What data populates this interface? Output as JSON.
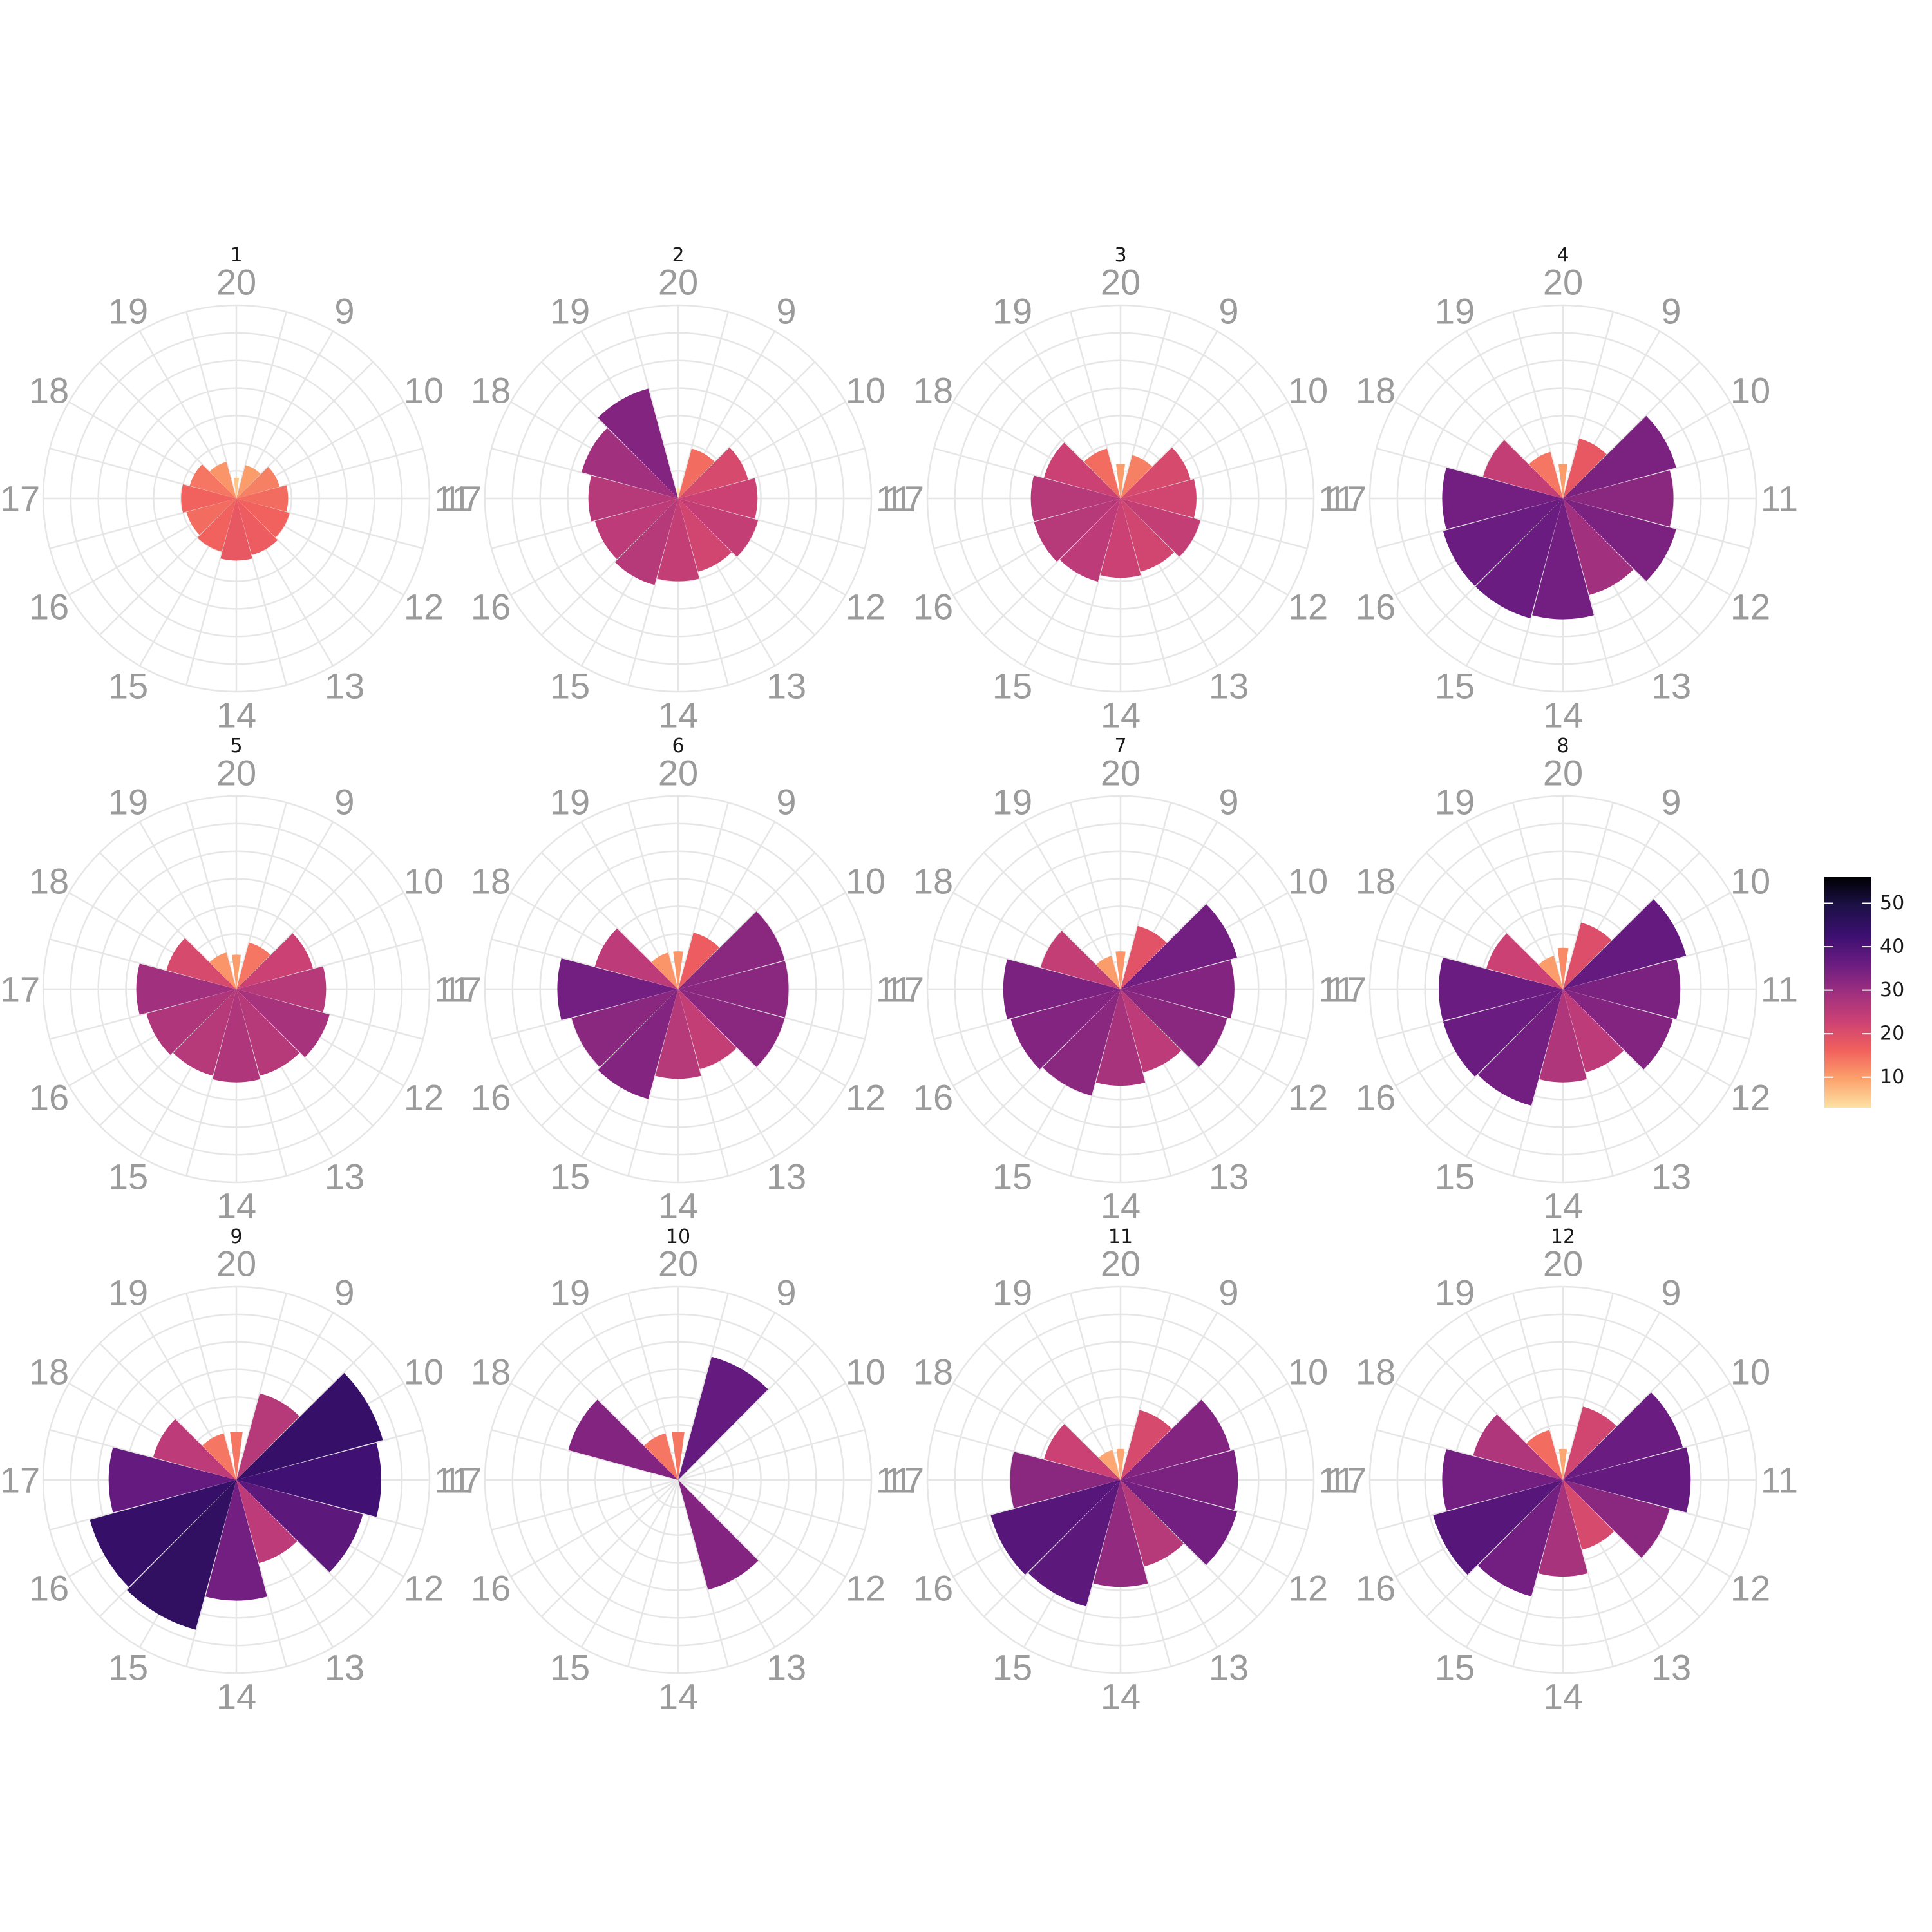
{
  "chart_data": {
    "type": "polar-bar",
    "hours": [
      9,
      10,
      11,
      12,
      13,
      14,
      15,
      16,
      17,
      18,
      19,
      20
    ],
    "rmax": 56,
    "grid_rings": [
      8,
      16,
      24,
      32,
      40,
      48,
      56
    ],
    "color_scale": {
      "min": 3,
      "max": 56,
      "ticks": [
        10,
        20,
        30,
        40,
        50
      ],
      "stops": [
        "#fde2a3",
        "#fca16c",
        "#f1605d",
        "#cc4174",
        "#9e2f7f",
        "#6a1c81",
        "#3b0f70",
        "#1d1147",
        "#000004"
      ]
    },
    "panels": [
      {
        "title": "1",
        "values": [
          10,
          13,
          15,
          16,
          17,
          18,
          16,
          15,
          16,
          14,
          11,
          6
        ]
      },
      {
        "title": "2",
        "values": [
          15,
          21,
          23,
          24,
          22,
          24,
          26,
          25,
          26,
          29,
          33,
          3
        ]
      },
      {
        "title": "3",
        "values": [
          13,
          21,
          22,
          24,
          22,
          23,
          25,
          26,
          26,
          23,
          15,
          10
        ]
      },
      {
        "title": "4",
        "values": [
          18,
          34,
          32,
          34,
          29,
          35,
          36,
          36,
          35,
          24,
          14,
          10
        ]
      },
      {
        "title": "5",
        "values": [
          14,
          23,
          26,
          28,
          26,
          27,
          26,
          27,
          29,
          21,
          11,
          10
        ]
      },
      {
        "title": "6",
        "values": [
          17,
          32,
          32,
          32,
          24,
          26,
          33,
          32,
          35,
          25,
          11,
          11
        ]
      },
      {
        "title": "7",
        "values": [
          19,
          35,
          33,
          32,
          25,
          28,
          32,
          33,
          34,
          24,
          10,
          11
        ]
      },
      {
        "title": "8",
        "values": [
          20,
          37,
          34,
          33,
          25,
          27,
          35,
          36,
          36,
          23,
          10,
          12
        ]
      },
      {
        "title": "9",
        "values": [
          26,
          44,
          42,
          38,
          25,
          35,
          45,
          44,
          37,
          25,
          14,
          14
        ]
      },
      {
        "title": "10",
        "values": [
          37,
          0,
          0,
          0,
          33,
          0,
          0,
          0,
          0,
          33,
          14,
          14
        ]
      },
      {
        "title": "11",
        "values": [
          21,
          33,
          34,
          35,
          26,
          31,
          38,
          39,
          32,
          23,
          9,
          9
        ]
      },
      {
        "title": "12",
        "values": [
          22,
          36,
          37,
          32,
          21,
          28,
          35,
          39,
          35,
          27,
          15,
          9
        ]
      }
    ]
  }
}
